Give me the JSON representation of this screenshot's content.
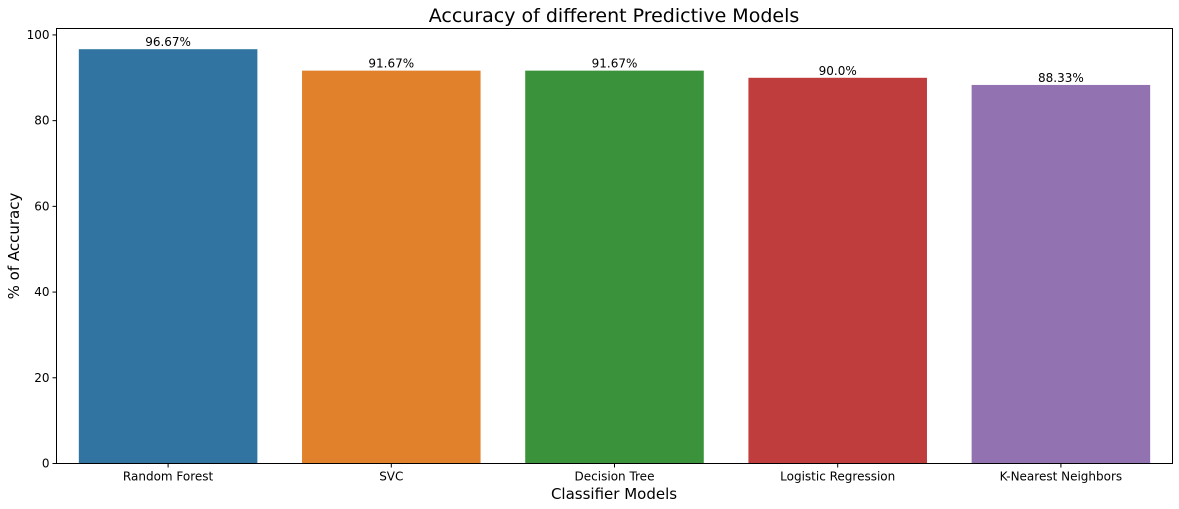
{
  "chart_data": {
    "type": "bar",
    "title": "Accuracy of different Predictive Models",
    "xlabel": "Classifier Models",
    "ylabel": "% of Accuracy",
    "categories": [
      "Random Forest",
      "SVC",
      "Decision Tree",
      "Logistic Regression",
      "K-Nearest Neighbors"
    ],
    "values": [
      96.67,
      91.67,
      91.67,
      90.0,
      88.33
    ],
    "data_labels": [
      "96.67%",
      "91.67%",
      "91.67%",
      "90.0%",
      "88.33%"
    ],
    "colors": [
      "#3274a1",
      "#e1812c",
      "#3a923a",
      "#c03d3e",
      "#9372b2"
    ],
    "ylim": [
      0,
      101.5
    ],
    "yticks": [
      0,
      20,
      40,
      60,
      80,
      100
    ],
    "grid": false,
    "legend": "none"
  }
}
